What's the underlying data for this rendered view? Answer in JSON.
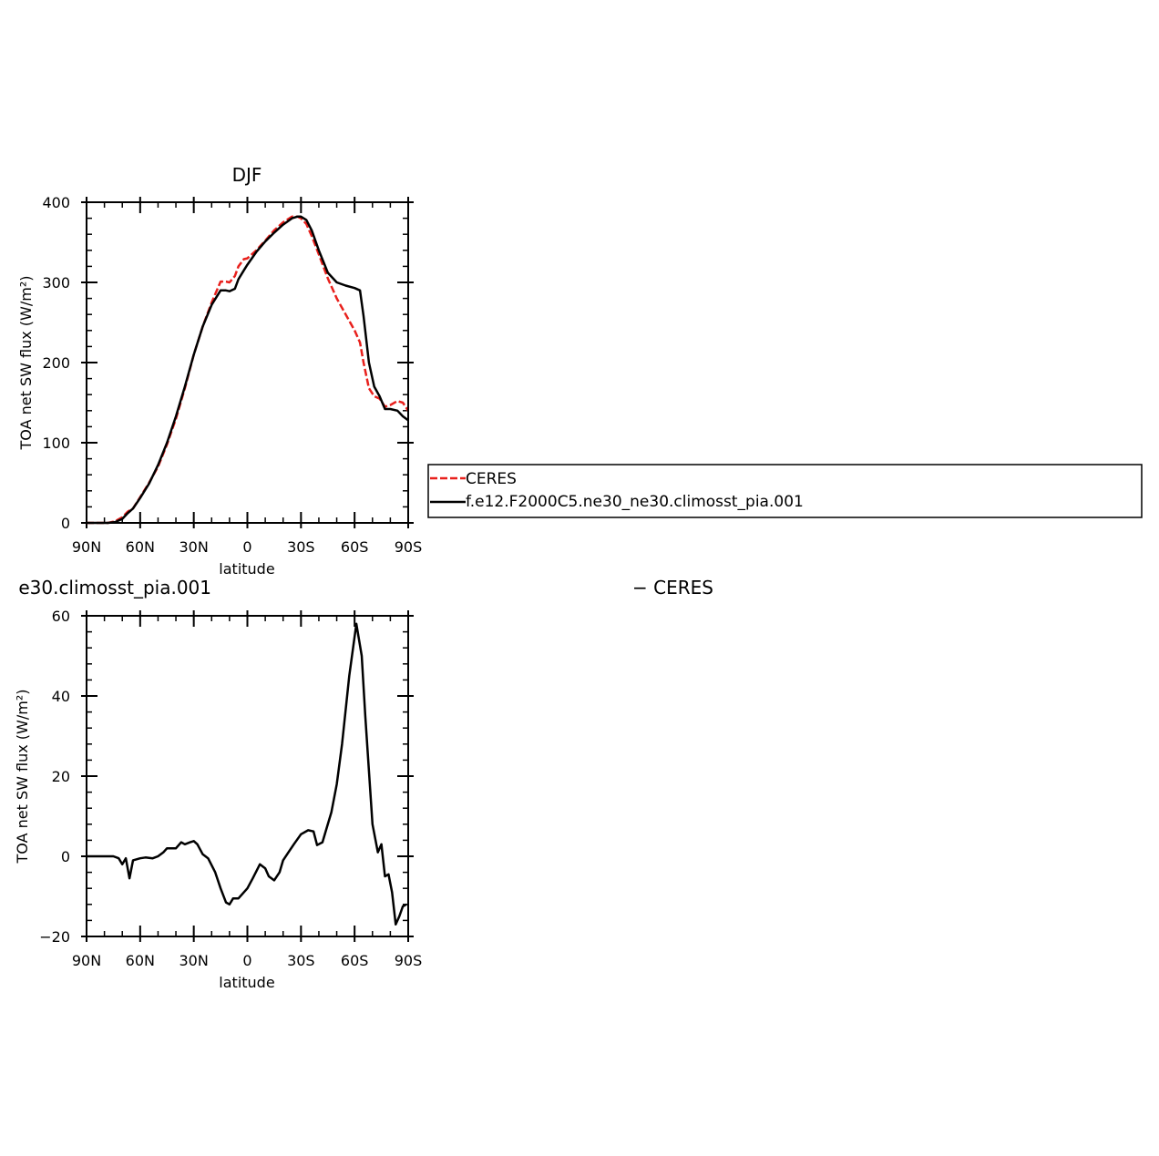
{
  "chart_data": [
    {
      "type": "line",
      "title": "DJF",
      "xlabel": "latitude",
      "ylabel": "TOA net SW flux (W/m²)",
      "xlim": [
        90,
        -90
      ],
      "ylim": [
        0,
        400
      ],
      "xticks": [
        90,
        60,
        30,
        0,
        -30,
        -60,
        -90
      ],
      "xticklabels": [
        "90N",
        "60N",
        "30N",
        "0",
        "30S",
        "60S",
        "90S"
      ],
      "yticks": [
        0,
        100,
        200,
        300,
        400
      ],
      "yticklabels": [
        "0",
        "100",
        "200",
        "300",
        "400"
      ],
      "legend": {
        "placement": "right-outside"
      },
      "series": [
        {
          "name": "CERES",
          "color": "#e8201c",
          "dash": "dashed",
          "x": [
            90,
            80,
            78,
            74,
            70,
            67,
            64,
            60,
            55,
            50,
            45,
            40,
            35,
            30,
            25,
            20,
            15,
            12,
            10,
            7,
            5,
            2,
            0,
            -5,
            -10,
            -15,
            -20,
            -25,
            -28,
            -30,
            -33,
            -36,
            -40,
            -45,
            -50,
            -55,
            -60,
            -63,
            -65,
            -68,
            -71,
            -74,
            -77,
            -80,
            -84,
            -87,
            -90
          ],
          "y": [
            0,
            0,
            0,
            2,
            7,
            14,
            18,
            32,
            50,
            70,
            98,
            130,
            168,
            210,
            245,
            275,
            301,
            301,
            300,
            308,
            320,
            329,
            330,
            340,
            352,
            365,
            375,
            382,
            382,
            380,
            373,
            358,
            335,
            305,
            280,
            260,
            240,
            225,
            200,
            168,
            158,
            155,
            145,
            147,
            152,
            150,
            140
          ]
        },
        {
          "name": "f.e12.F2000C5.ne30_ne30.climosst_pia.001",
          "color": "#000000",
          "dash": "solid",
          "x": [
            90,
            80,
            78,
            74,
            70,
            67,
            64,
            60,
            55,
            50,
            45,
            40,
            35,
            30,
            25,
            20,
            15,
            12,
            10,
            7,
            5,
            2,
            0,
            -5,
            -10,
            -15,
            -20,
            -25,
            -28,
            -30,
            -33,
            -36,
            -40,
            -45,
            -50,
            -55,
            -60,
            -63,
            -65,
            -68,
            -71,
            -74,
            -77,
            -80,
            -84,
            -87,
            -90
          ],
          "y": [
            0,
            0,
            0,
            1,
            5,
            12,
            18,
            31,
            49,
            72,
            100,
            133,
            170,
            210,
            245,
            272,
            290,
            290,
            289,
            292,
            304,
            315,
            322,
            338,
            351,
            362,
            372,
            380,
            382,
            382,
            378,
            365,
            340,
            312,
            300,
            296,
            293,
            290,
            258,
            200,
            170,
            158,
            142,
            142,
            140,
            133,
            128
          ]
        }
      ]
    },
    {
      "type": "line",
      "title": "e30.climosst_pia.001",
      "title_right": "− CERES",
      "xlabel": "latitude",
      "ylabel": "TOA net SW flux (W/m²)",
      "xlim": [
        90,
        -90
      ],
      "ylim": [
        -20,
        60
      ],
      "xticks": [
        90,
        60,
        30,
        0,
        -30,
        -60,
        -90
      ],
      "xticklabels": [
        "90N",
        "60N",
        "30N",
        "0",
        "30S",
        "60S",
        "90S"
      ],
      "yticks": [
        -20,
        0,
        20,
        40,
        60
      ],
      "yticklabels": [
        "−20",
        "0",
        "20",
        "40",
        "60"
      ],
      "series": [
        {
          "color": "#000000",
          "dash": "solid",
          "x": [
            90,
            75,
            72,
            70,
            68,
            66,
            64,
            60,
            57,
            53,
            50,
            47,
            45,
            42,
            40,
            37,
            35,
            32,
            30,
            28,
            25,
            22,
            18,
            15,
            12,
            10,
            8,
            5,
            0,
            -3,
            -7,
            -10,
            -12,
            -15,
            -18,
            -20,
            -23,
            -26,
            -30,
            -34,
            -37,
            -39,
            -42,
            -44,
            -47,
            -50,
            -53,
            -57,
            -61,
            -64,
            -66,
            -70,
            -73,
            -75,
            -77,
            -79,
            -81,
            -83,
            -85,
            -87,
            -89
          ],
          "y": [
            0,
            0,
            -0.5,
            -2,
            -0.5,
            -5.5,
            -1,
            -0.5,
            -0.3,
            -0.5,
            0,
            1,
            2,
            2,
            2,
            3.5,
            3,
            3.5,
            3.8,
            3,
            0.5,
            -0.5,
            -4,
            -8,
            -11.5,
            -12,
            -10.5,
            -10.5,
            -8,
            -5.5,
            -2,
            -3,
            -5,
            -6,
            -4,
            -1,
            1,
            3,
            5.5,
            6.5,
            6.2,
            2.8,
            3.5,
            6.5,
            11,
            18,
            28,
            45,
            58,
            50,
            35,
            8,
            1,
            3,
            -5,
            -4.5,
            -9,
            -17,
            -15,
            -12.5,
            -12
          ]
        }
      ]
    }
  ]
}
